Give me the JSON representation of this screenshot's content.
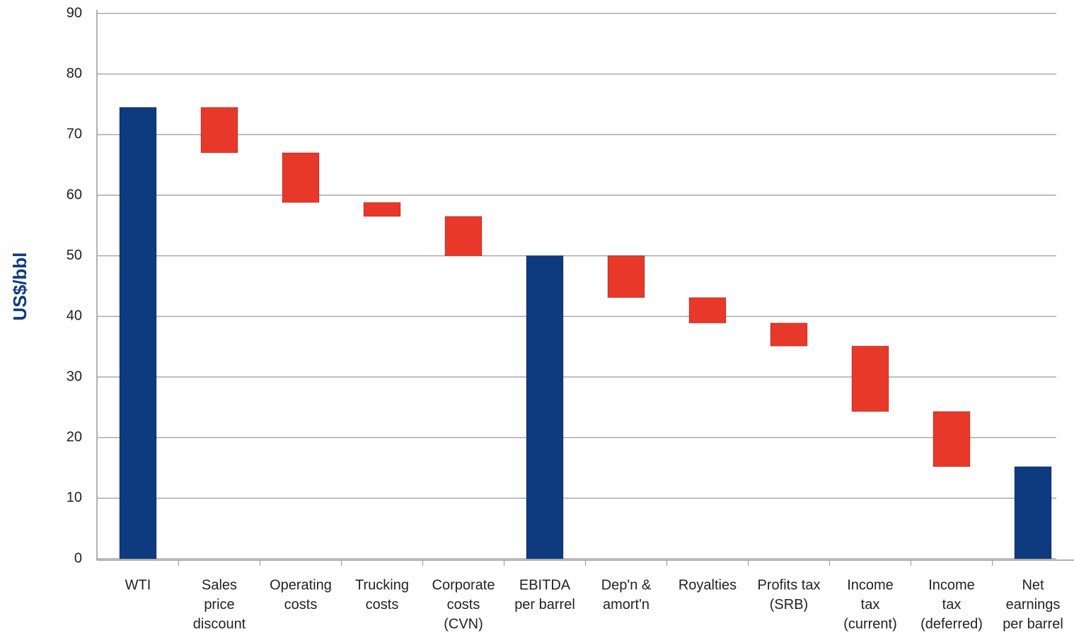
{
  "chart_data": {
    "type": "waterfall",
    "y_label": "US$/bbl",
    "categories": [
      [
        "WTI"
      ],
      [
        "Sales",
        "price",
        "discount"
      ],
      [
        "Operating",
        "costs"
      ],
      [
        "Trucking",
        "costs"
      ],
      [
        "Corporate",
        "costs",
        "(CVN)"
      ],
      [
        "EBITDA",
        "per barrel"
      ],
      [
        "Dep'n &",
        "amort'n"
      ],
      [
        "Royalties"
      ],
      [
        "Profits tax",
        "(SRB)"
      ],
      [
        "Income",
        "tax",
        "(current)"
      ],
      [
        "Income",
        "tax",
        "(deferred)"
      ],
      [
        "Net",
        "earnings",
        "per barrel"
      ]
    ],
    "values": [
      74.5,
      -7.5,
      -8.2,
      -2.3,
      -6.5,
      50,
      -6.9,
      -4.2,
      -3.8,
      -10.8,
      -9.1,
      15.2
    ],
    "is_total": [
      true,
      false,
      false,
      false,
      false,
      true,
      false,
      false,
      false,
      false,
      false,
      true
    ],
    "total_color": "#0e3a80",
    "decrease_color": "#e8382a",
    "ylim": [
      0,
      90
    ],
    "yticks": [
      0,
      10,
      20,
      30,
      40,
      50,
      60,
      70,
      80,
      90
    ],
    "grid": true
  }
}
